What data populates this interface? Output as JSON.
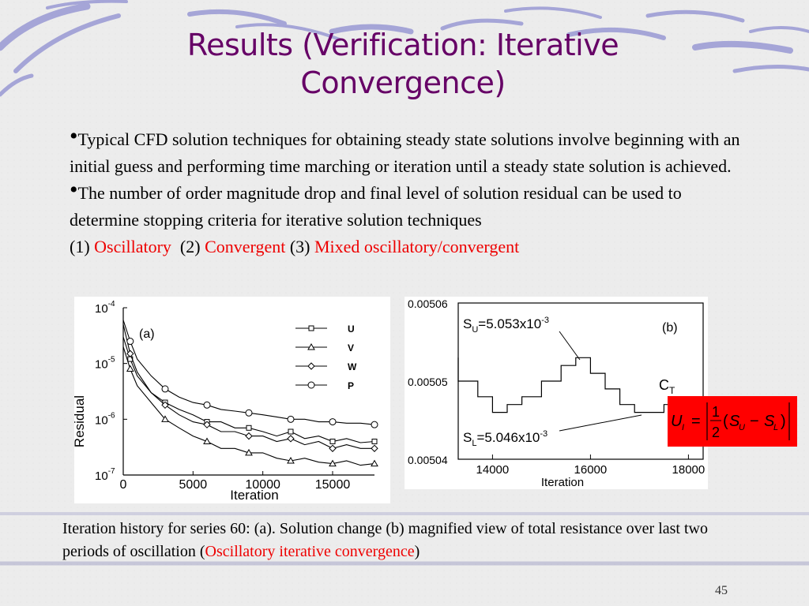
{
  "slide": {
    "title_lines": [
      "Results (Verification: Iterative",
      "Convergence)"
    ],
    "bullets": [
      {
        "text": "Typical CFD solution techniques for obtaining steady state solutions involve beginning with an initial guess and performing time marching or iteration until a steady state solution is achieved."
      },
      {
        "text": "The number of order magnitude drop and final level of solution residual can be used to determine stopping criteria for iterative solution techniques",
        "items": [
          {
            "num": "(1)",
            "label": "Oscillatory"
          },
          {
            "num": "(2)",
            "label": "Convergent"
          },
          {
            "num": "(3)",
            "label": "Mixed oscillatory/convergent"
          }
        ]
      }
    ],
    "caption": {
      "text": "Iteration history for series 60: (a). Solution change (b) magnified view of total resistance over last two periods of oscillation (",
      "highlight": "Oscillatory iterative convergence",
      "end": ")"
    },
    "page_number": "45"
  },
  "colors": {
    "title": "#660066",
    "highlight": "#ee0000",
    "formula_bg": "#ff0000"
  },
  "chart_data": [
    {
      "type": "line",
      "panel_label": "(a)",
      "xlabel": "Iteration",
      "ylabel": "Residual",
      "x_ticks": [
        "0",
        "5000",
        "10000",
        "15000"
      ],
      "y_ticks": [
        "10^-4",
        "10^-5",
        "10^-6",
        "10^-7"
      ],
      "y_scale": "log",
      "xlim": [
        0,
        18000
      ],
      "ylim": [
        1e-07,
        0.0001
      ],
      "legend_position": "top-right",
      "series": [
        {
          "name": "U",
          "marker": "square",
          "x": [
            0,
            500,
            1000,
            2000,
            3000,
            4000,
            5000,
            6000,
            7000,
            8000,
            9000,
            10000,
            11000,
            12000,
            13000,
            14000,
            15000,
            16000,
            17000,
            18000
          ],
          "y": [
            3e-05,
            1.2e-05,
            6e-06,
            3e-06,
            2e-06,
            1.5e-06,
            1.2e-06,
            9e-07,
            9e-07,
            7e-07,
            7e-07,
            6e-07,
            5e-07,
            6e-07,
            4.5e-07,
            5e-07,
            4e-07,
            4.5e-07,
            3.8e-07,
            4e-07
          ]
        },
        {
          "name": "V",
          "marker": "triangle",
          "x": [
            0,
            500,
            1000,
            2000,
            3000,
            4000,
            5000,
            6000,
            7000,
            8000,
            9000,
            10000,
            11000,
            12000,
            13000,
            14000,
            15000,
            16000,
            17000,
            18000
          ],
          "y": [
            2e-05,
            8e-06,
            4e-06,
            2e-06,
            1e-06,
            7e-07,
            5e-07,
            4e-07,
            3e-07,
            3e-07,
            2.5e-07,
            2.5e-07,
            2e-07,
            1.8e-07,
            2e-07,
            1.7e-07,
            1.6e-07,
            1.8e-07,
            1.5e-07,
            1.6e-07
          ]
        },
        {
          "name": "W",
          "marker": "diamond",
          "x": [
            0,
            500,
            1000,
            2000,
            3000,
            4000,
            5000,
            6000,
            7000,
            8000,
            9000,
            10000,
            11000,
            12000,
            13000,
            14000,
            15000,
            16000,
            17000,
            18000
          ],
          "y": [
            5e-05,
            1.5e-05,
            7e-06,
            3e-06,
            1.8e-06,
            1.2e-06,
            9e-07,
            8e-07,
            6e-07,
            6e-07,
            5e-07,
            5e-07,
            4e-07,
            4.5e-07,
            3.5e-07,
            4e-07,
            3e-07,
            3.5e-07,
            3e-07,
            3e-07
          ]
        },
        {
          "name": "P",
          "marker": "circle",
          "x": [
            0,
            500,
            1000,
            2000,
            3000,
            4000,
            5000,
            6000,
            7000,
            8000,
            9000,
            10000,
            11000,
            12000,
            13000,
            14000,
            15000,
            16000,
            17000,
            18000
          ],
          "y": [
            6e-05,
            2.5e-05,
            1.2e-05,
            6e-06,
            3.5e-06,
            2.5e-06,
            2e-06,
            1.8e-06,
            1.5e-06,
            1.4e-06,
            1.3e-06,
            1.2e-06,
            1.1e-06,
            1e-06,
            1e-06,
            9e-07,
            9e-07,
            8.5e-07,
            8.5e-07,
            8e-07
          ]
        }
      ]
    },
    {
      "type": "line",
      "panel_label": "(b)",
      "xlabel": "Iteration",
      "x_ticks": [
        "14000",
        "16000",
        "18000"
      ],
      "y_ticks": [
        "0.00506",
        "0.00505",
        "0.00504"
      ],
      "xlim": [
        13300,
        18300
      ],
      "ylim": [
        0.00504,
        0.00506
      ],
      "series": [
        {
          "name": "C_T",
          "x": [
            13300,
            13700,
            14000,
            14300,
            14600,
            15000,
            15400,
            15700,
            16000,
            16300,
            16600,
            16900,
            17200,
            17500,
            17800,
            18100
          ],
          "y": [
            0.005053,
            0.00505,
            0.005048,
            0.005046,
            0.005047,
            0.005048,
            0.00505,
            0.005052,
            0.005053,
            0.005051,
            0.005049,
            0.005047,
            0.005046,
            0.005046,
            0.005047,
            0.005048
          ]
        }
      ],
      "annotations": [
        {
          "label": "S",
          "sub": "U",
          "value": "=5.053x10",
          "exp": "-3"
        },
        {
          "label": "S",
          "sub": "L",
          "value": "=5.046x10",
          "exp": "-3"
        },
        {
          "label": "C",
          "sub": "T"
        }
      ]
    }
  ],
  "formula": {
    "lhs": "U",
    "lhs_sub": "I",
    "eq": "=",
    "num": "1",
    "den": "2",
    "s1": "S",
    "s1_sub": "U",
    "minus": "−",
    "s2": "S",
    "s2_sub": "L"
  }
}
